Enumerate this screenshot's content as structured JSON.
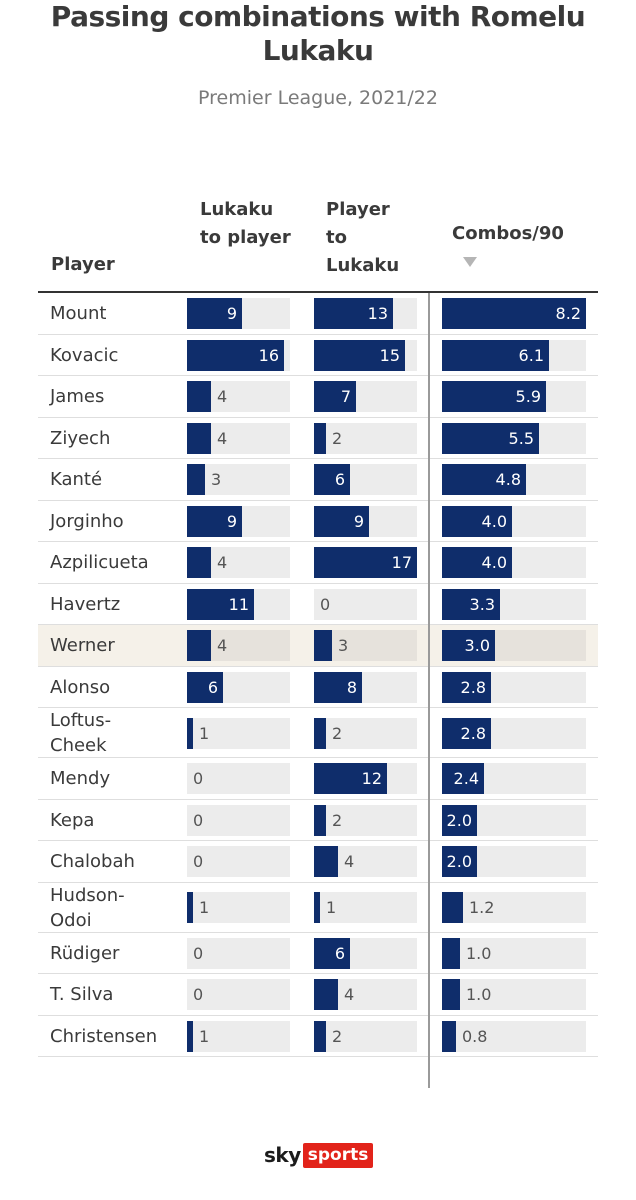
{
  "colors": {
    "bar": "#0f2d6b",
    "highlight_row": "#f5f1e9",
    "logo_red": "#e2231a"
  },
  "icons": {
    "sort_indicator": "triangle-down-icon"
  },
  "logo": {
    "sky": "sky",
    "sports": "sports"
  },
  "chart_data": {
    "type": "bar",
    "title": "Passing combinations with Romelu Lukaku",
    "subtitle": "Premier League, 2021/22",
    "row_header": "Player",
    "sorted_by": "Combos/90",
    "highlighted_category": "Werner",
    "categories": [
      "Mount",
      "Kovacic",
      "James",
      "Ziyech",
      "Kanté",
      "Jorginho",
      "Azpilicueta",
      "Havertz",
      "Werner",
      "Alonso",
      "Loftus-Cheek",
      "Mendy",
      "Kepa",
      "Chalobah",
      "Hudson-Odoi",
      "Rüdiger",
      "T. Silva",
      "Christensen"
    ],
    "series": [
      {
        "name": "Lukaku to player",
        "values": [
          9,
          16,
          4,
          4,
          3,
          9,
          4,
          11,
          4,
          6,
          1,
          0,
          0,
          0,
          1,
          0,
          0,
          1
        ],
        "xlim": [
          0,
          17
        ]
      },
      {
        "name": "Player to Lukaku",
        "values": [
          13,
          15,
          7,
          2,
          6,
          9,
          17,
          0,
          3,
          8,
          2,
          12,
          2,
          4,
          1,
          6,
          4,
          2
        ],
        "xlim": [
          0,
          17
        ]
      },
      {
        "name": "Combos/90",
        "values": [
          "8.2",
          "6.1",
          "5.9",
          "5.5",
          "4.8",
          "4.0",
          "4.0",
          "3.3",
          "3.0",
          "2.8",
          "2.8",
          "2.4",
          "2.0",
          "2.0",
          "1.2",
          "1.0",
          "1.0",
          "0.8"
        ],
        "xlim": [
          0,
          8.2
        ]
      }
    ]
  }
}
